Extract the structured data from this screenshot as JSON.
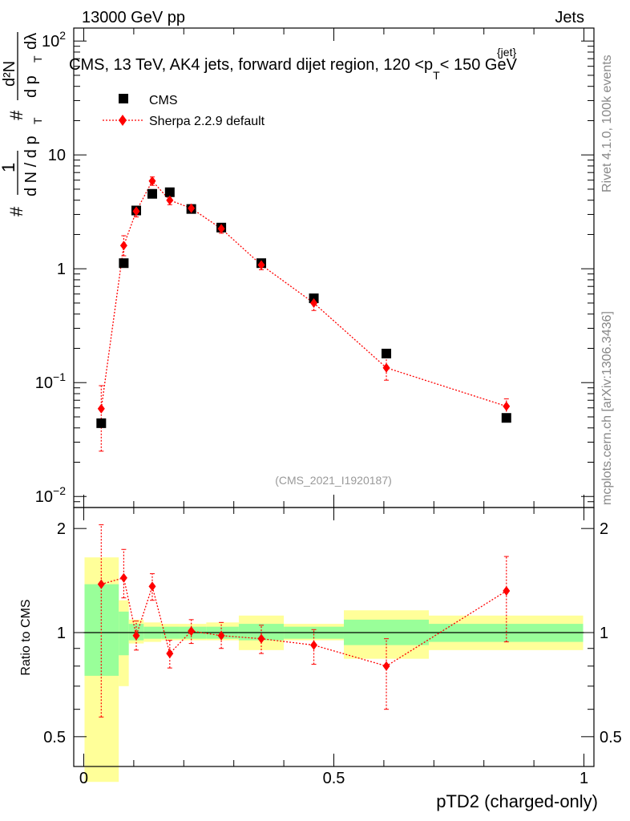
{
  "header": {
    "energy_label": "13000 GeV pp",
    "category_label": "Jets"
  },
  "side_labels": {
    "rivet": "Rivet 4.1.0,  100k events",
    "mcplots": "mcplots.cern.ch [arXiv:1306.3436]"
  },
  "colors": {
    "data_marker": "#000000",
    "mc_line": "#ff0000",
    "band_inner": "#99ff99",
    "band_outer": "#ffff99"
  },
  "chart_data": [
    {
      "type": "scatter",
      "title": "CMS, 13 TeV, AK4 jets, forward dijet region, 120 <p_T^{jet}< 150 GeV",
      "title_main": "CMS, 13 TeV, AK4 jets, forward dijet region, 120 <p",
      "title_sub": "T",
      "title_sup": "{jet}",
      "title_end": "< 150 GeV",
      "ylabel": "1/(dN/dpT) d²N/(dpT dλ)",
      "ylabel_parts": {
        "hash": "#",
        "one": "1",
        "dn": "d N / d p",
        "t": "T",
        "dsq": "d²N",
        "dpdl": "d p",
        "dl": "dλ"
      },
      "yscale": "log",
      "ylim": [
        0.008,
        130
      ],
      "xlim": [
        -0.02,
        1.02
      ],
      "yticks": [
        {
          "value": 0.01,
          "base": "10",
          "exp": "−2"
        },
        {
          "value": 0.1,
          "base": "10",
          "exp": "−1"
        },
        {
          "value": 1,
          "base": "1",
          "exp": ""
        },
        {
          "value": 10,
          "base": "10",
          "exp": ""
        },
        {
          "value": 100,
          "base": "10",
          "exp": "2"
        }
      ],
      "watermark": "(CMS_2021_I1920187)",
      "legend": [
        {
          "name": "CMS",
          "marker": "square"
        },
        {
          "name": "Sherpa 2.2.9 default",
          "marker": "diamond"
        }
      ],
      "bins": [
        0.0,
        0.07,
        0.09,
        0.12,
        0.155,
        0.19,
        0.245,
        0.31,
        0.4,
        0.52,
        0.69,
        1.0
      ],
      "series": [
        {
          "name": "CMS",
          "x": [
            0.035,
            0.08,
            0.105,
            0.137,
            0.172,
            0.215,
            0.275,
            0.355,
            0.46,
            0.605,
            0.845
          ],
          "y": [
            0.044,
            1.12,
            3.25,
            4.55,
            4.7,
            3.35,
            2.3,
            1.12,
            0.55,
            0.18,
            0.049
          ]
        },
        {
          "name": "Sherpa 2.2.9 default",
          "x": [
            0.035,
            0.08,
            0.105,
            0.137,
            0.172,
            0.215,
            0.275,
            0.355,
            0.46,
            0.605,
            0.845
          ],
          "y": [
            0.059,
            1.6,
            3.2,
            5.9,
            4.0,
            3.4,
            2.25,
            1.08,
            0.5,
            0.135,
            0.062
          ],
          "yerr_lo": [
            0.034,
            0.3,
            0.35,
            0.5,
            0.35,
            0.25,
            0.2,
            0.1,
            0.07,
            0.03,
            0.01
          ],
          "yerr_hi": [
            0.035,
            0.35,
            0.35,
            0.5,
            0.35,
            0.25,
            0.2,
            0.1,
            0.07,
            0.03,
            0.01
          ]
        }
      ]
    },
    {
      "type": "scatter",
      "ylabel": "Ratio to CMS",
      "xlabel": "pTD2 (charged-only)",
      "yscale": "log",
      "ylim": [
        0.41,
        2.3
      ],
      "xlim": [
        -0.02,
        1.02
      ],
      "xticks": [
        {
          "value": 0,
          "label": "0"
        },
        {
          "value": 0.5,
          "label": "0.5"
        },
        {
          "value": 1,
          "label": "1"
        }
      ],
      "yticks": [
        {
          "value": 0.5,
          "label": "0.5"
        },
        {
          "value": 1,
          "label": "1"
        },
        {
          "value": 2,
          "label": "2"
        }
      ],
      "bins": [
        0.0,
        0.07,
        0.09,
        0.12,
        0.155,
        0.19,
        0.245,
        0.31,
        0.4,
        0.52,
        0.69,
        1.0
      ],
      "band_inner": [
        [
          0.75,
          1.38
        ],
        [
          0.86,
          1.15
        ],
        [
          0.95,
          1.06
        ],
        [
          0.96,
          1.04
        ],
        [
          0.96,
          1.04
        ],
        [
          0.96,
          1.04
        ],
        [
          0.96,
          1.04
        ],
        [
          0.95,
          1.06
        ],
        [
          0.96,
          1.04
        ],
        [
          0.92,
          1.09
        ],
        [
          0.94,
          1.06
        ]
      ],
      "band_outer": [
        [
          0.37,
          1.65
        ],
        [
          0.7,
          1.24
        ],
        [
          0.93,
          1.09
        ],
        [
          0.94,
          1.07
        ],
        [
          0.95,
          1.06
        ],
        [
          0.95,
          1.06
        ],
        [
          0.95,
          1.07
        ],
        [
          0.89,
          1.12
        ],
        [
          0.95,
          1.06
        ],
        [
          0.84,
          1.16
        ],
        [
          0.89,
          1.12
        ]
      ],
      "series": [
        {
          "name": "Sherpa 2.2.9 default",
          "x": [
            0.035,
            0.08,
            0.105,
            0.137,
            0.172,
            0.215,
            0.275,
            0.355,
            0.46,
            0.605,
            0.845
          ],
          "y": [
            1.38,
            1.44,
            0.98,
            1.36,
            0.87,
            1.01,
            0.98,
            0.96,
            0.92,
            0.8,
            1.32
          ],
          "yerr_lo": [
            0.81,
            0.18,
            0.09,
            0.12,
            0.08,
            0.08,
            0.08,
            0.09,
            0.11,
            0.2,
            0.38
          ],
          "yerr_hi": [
            0.67,
            0.3,
            0.1,
            0.12,
            0.08,
            0.08,
            0.09,
            0.09,
            0.1,
            0.16,
            0.34
          ]
        }
      ]
    }
  ]
}
